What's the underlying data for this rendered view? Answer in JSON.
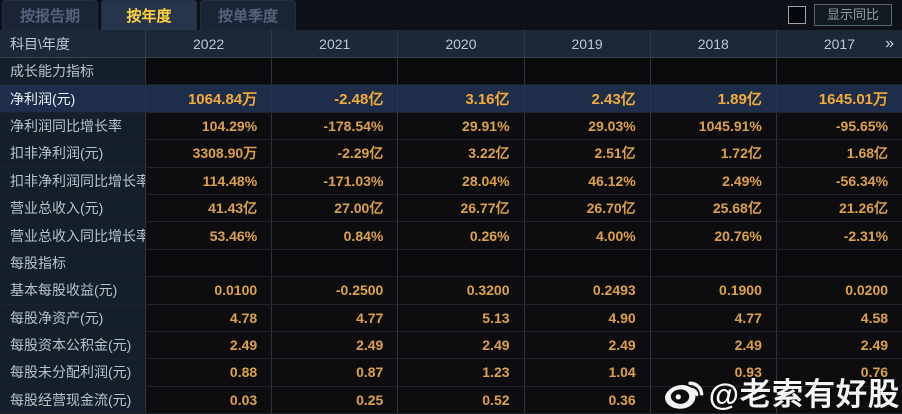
{
  "tabs": {
    "report_period": "按报告期",
    "annual": "按年度",
    "quarter": "按单季度"
  },
  "controls": {
    "show_yoy_label": "显示同比"
  },
  "table": {
    "corner_label": "科目\\年度",
    "years": [
      "2022",
      "2021",
      "2020",
      "2019",
      "2018",
      "2017"
    ],
    "more_icon": "»",
    "rows": [
      {
        "label": "成长能力指标",
        "type": "section",
        "values": [
          "",
          "",
          "",
          "",
          "",
          ""
        ]
      },
      {
        "label": "净利润(元)",
        "type": "highlight",
        "values": [
          "1064.84万",
          "-2.48亿",
          "3.16亿",
          "2.43亿",
          "1.89亿",
          "1645.01万"
        ]
      },
      {
        "label": "净利润同比增长率",
        "type": "normal",
        "values": [
          "104.29%",
          "-178.54%",
          "29.91%",
          "29.03%",
          "1045.91%",
          "-95.65%"
        ]
      },
      {
        "label": "扣非净利润(元)",
        "type": "normal",
        "values": [
          "3308.90万",
          "-2.29亿",
          "3.22亿",
          "2.51亿",
          "1.72亿",
          "1.68亿"
        ]
      },
      {
        "label": "扣非净利润同比增长率",
        "type": "normal",
        "values": [
          "114.48%",
          "-171.03%",
          "28.04%",
          "46.12%",
          "2.49%",
          "-56.34%"
        ]
      },
      {
        "label": "营业总收入(元)",
        "type": "normal",
        "values": [
          "41.43亿",
          "27.00亿",
          "26.77亿",
          "26.70亿",
          "25.68亿",
          "21.26亿"
        ]
      },
      {
        "label": "营业总收入同比增长率",
        "type": "normal",
        "values": [
          "53.46%",
          "0.84%",
          "0.26%",
          "4.00%",
          "20.76%",
          "-2.31%"
        ]
      },
      {
        "label": "每股指标",
        "type": "section",
        "values": [
          "",
          "",
          "",
          "",
          "",
          ""
        ]
      },
      {
        "label": "基本每股收益(元)",
        "type": "normal",
        "values": [
          "0.0100",
          "-0.2500",
          "0.3200",
          "0.2493",
          "0.1900",
          "0.0200"
        ]
      },
      {
        "label": "每股净资产(元)",
        "type": "normal",
        "values": [
          "4.78",
          "4.77",
          "5.13",
          "4.90",
          "4.77",
          "4.58"
        ]
      },
      {
        "label": "每股资本公积金(元)",
        "type": "normal",
        "values": [
          "2.49",
          "2.49",
          "2.49",
          "2.49",
          "2.49",
          "2.49"
        ]
      },
      {
        "label": "每股未分配利润(元)",
        "type": "normal",
        "values": [
          "0.88",
          "0.87",
          "1.23",
          "1.04",
          "0.93",
          "0.76"
        ]
      },
      {
        "label": "每股经营现金流(元)",
        "type": "normal",
        "values": [
          "0.03",
          "0.25",
          "0.52",
          "0.36",
          "",
          ""
        ]
      }
    ]
  },
  "watermark": {
    "icon": "weibo-icon",
    "handle": "@老索有好股"
  },
  "colors": {
    "value_gold": "#dca24b",
    "highlight_gold": "#f3ab38",
    "active_tab_text": "#ffd53e",
    "highlight_row_bg": "#1e2e4a",
    "header_bg": "#1c2836",
    "label_col_bg": "#151f2c"
  }
}
